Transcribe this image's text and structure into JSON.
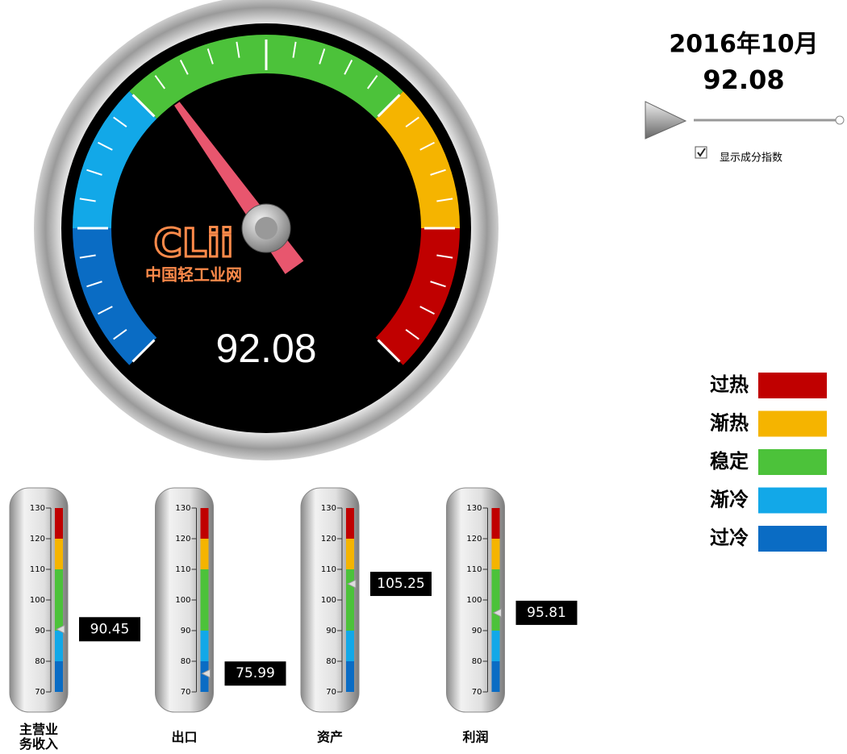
{
  "header": {
    "period": "2016年10月",
    "checkbox_label": "显示成分指数",
    "checked": true
  },
  "bands": [
    {
      "name": "过热",
      "color": "#c00000",
      "from": 120,
      "to": 130
    },
    {
      "name": "渐热",
      "color": "#f5b400",
      "from": 110,
      "to": 120
    },
    {
      "name": "稳定",
      "color": "#4cc23a",
      "from": 90,
      "to": 110
    },
    {
      "name": "渐冷",
      "color": "#12a8e8",
      "from": 80,
      "to": 90
    },
    {
      "name": "过冷",
      "color": "#0a6cc4",
      "from": 70,
      "to": 80
    }
  ],
  "watermark": {
    "logo": "CLii",
    "text": "中国轻工业网"
  },
  "chart_data": [
    {
      "type": "gauge",
      "value": 92.08,
      "ylim": [
        70,
        130
      ],
      "needle_color": "#e8566e"
    },
    {
      "type": "linear-gauge",
      "title": "主营业务收入",
      "value": 90.45,
      "ylim": [
        70,
        130
      ],
      "yticks": [
        70,
        80,
        90,
        100,
        110,
        120,
        130
      ]
    },
    {
      "type": "linear-gauge",
      "title": "出口",
      "value": 75.99,
      "ylim": [
        70,
        130
      ],
      "yticks": [
        70,
        80,
        90,
        100,
        110,
        120,
        130
      ]
    },
    {
      "type": "linear-gauge",
      "title": "资产",
      "value": 105.25,
      "ylim": [
        70,
        130
      ],
      "yticks": [
        70,
        80,
        90,
        100,
        110,
        120,
        130
      ]
    },
    {
      "type": "linear-gauge",
      "title": "利润",
      "value": 95.81,
      "ylim": [
        70,
        130
      ],
      "yticks": [
        70,
        80,
        90,
        100,
        110,
        120,
        130
      ]
    }
  ]
}
